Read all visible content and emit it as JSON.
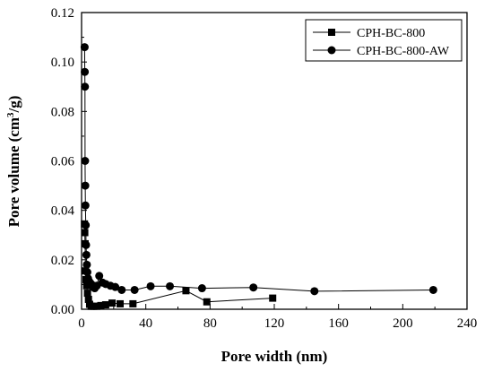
{
  "chart_data": {
    "type": "line",
    "title": "",
    "xlabel": "Pore width (nm)",
    "ylabel_main": "Pore volume (cm",
    "ylabel_sup": "3",
    "ylabel_tail": "/g)",
    "xlim": [
      0,
      240
    ],
    "ylim": [
      0,
      0.12
    ],
    "xticks": [
      "0",
      "40",
      "80",
      "120",
      "160",
      "200",
      "240"
    ],
    "yticks": [
      "0.00",
      "0.02",
      "0.04",
      "0.06",
      "0.08",
      "0.10",
      "0.12"
    ],
    "grid": false,
    "legend_position": "top-right",
    "series": [
      {
        "name": "CPH-BC-800",
        "marker": "square",
        "color": "#000000",
        "x": [
          1.8,
          2.0,
          2.2,
          2.5,
          2.8,
          3.2,
          3.7,
          4.3,
          5.0,
          6.0,
          7.5,
          9.5,
          12,
          15,
          19,
          24,
          32,
          65,
          78,
          119
        ],
        "y": [
          0.0345,
          0.031,
          0.0265,
          0.0155,
          0.012,
          0.0095,
          0.0065,
          0.004,
          0.002,
          0.0012,
          0.0012,
          0.0012,
          0.0015,
          0.0018,
          0.0025,
          0.0022,
          0.0022,
          0.0075,
          0.003,
          0.0045
        ]
      },
      {
        "name": "CPH-BC-800-AW",
        "marker": "circle",
        "color": "#000000",
        "x": [
          1.9,
          2.0,
          2.1,
          2.2,
          2.3,
          2.4,
          2.6,
          2.8,
          3.0,
          3.3,
          3.6,
          4.0,
          4.5,
          5.0,
          5.6,
          6.3,
          7.2,
          8.2,
          9.5,
          11,
          13,
          15,
          18,
          21,
          25,
          33,
          43,
          55,
          75,
          107,
          145,
          219
        ],
        "y": [
          0.106,
          0.096,
          0.09,
          0.06,
          0.05,
          0.042,
          0.034,
          0.026,
          0.022,
          0.018,
          0.015,
          0.0125,
          0.0115,
          0.011,
          0.0105,
          0.01,
          0.009,
          0.0085,
          0.0095,
          0.0135,
          0.0108,
          0.0102,
          0.0095,
          0.009,
          0.0078,
          0.0078,
          0.0093,
          0.0093,
          0.0085,
          0.0088,
          0.0073,
          0.0078
        ]
      }
    ]
  }
}
